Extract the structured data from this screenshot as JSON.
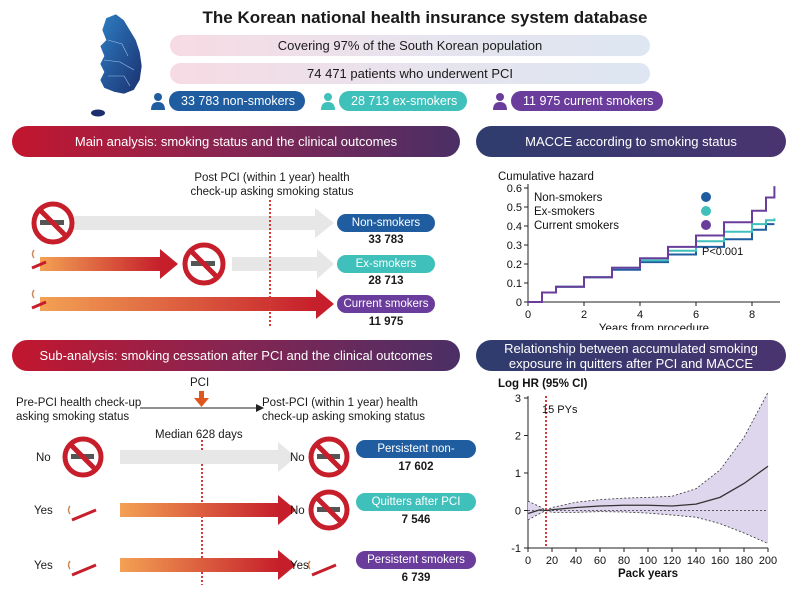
{
  "header": {
    "title": "The Korean national health insurance system database",
    "coverage": "Covering 97% of the South Korean population",
    "patients": "74 471 patients who underwent PCI",
    "groups": [
      {
        "label": "33 783 non-smokers",
        "color": "#1f5da0"
      },
      {
        "label": "28 713 ex-smokers",
        "color": "#3fc0bb"
      },
      {
        "label": "11 975 current smokers",
        "color": "#6a3c9c"
      }
    ]
  },
  "main_analysis": {
    "banner": "Main analysis: smoking status and the clinical outcomes",
    "checkup_line1": "Post PCI (within 1 year) health",
    "checkup_line2": "check-up asking smoking status",
    "rows": [
      {
        "label": "Non-smokers",
        "count": "33 783"
      },
      {
        "label": "Ex-smokers",
        "count": "28 713"
      },
      {
        "label": "Current smokers",
        "count": "11 975"
      }
    ]
  },
  "sub_analysis": {
    "banner": "Sub-analysis: smoking cessation after PCI and the clinical outcomes",
    "pci": "PCI",
    "pre_line1": "Pre-PCI health check-up",
    "pre_line2": "asking smoking status",
    "post_line1": "Post-PCI (within 1 year) health",
    "post_line2": "check-up asking smoking status",
    "median": "Median 628 days",
    "rows": [
      {
        "pre": "No",
        "post": "No",
        "label": "Persistent non-smokers",
        "count": "17 602"
      },
      {
        "pre": "Yes",
        "post": "No",
        "label": "Quitters after PCI",
        "count": "7 546"
      },
      {
        "pre": "Yes",
        "post": "Yes",
        "label": "Persistent smokers",
        "count": "6 739"
      }
    ]
  },
  "chart_data": [
    {
      "type": "line",
      "title": "MACCE according to smoking status",
      "ylabel": "Cumulative hazard",
      "xlabel": "Years from procedure",
      "xlim": [
        0,
        9
      ],
      "ylim": [
        0,
        0.6
      ],
      "xticks": [
        0,
        2,
        4,
        6,
        8
      ],
      "yticks": [
        0,
        0.1,
        0.2,
        0.3,
        0.4,
        0.5,
        0.6
      ],
      "ytick_labels": [
        "0",
        "0.1",
        "0.2",
        "0.3",
        "0.4",
        "0.5",
        "0.6"
      ],
      "annotation": "P<0.001",
      "legend": "top-left",
      "series": [
        {
          "name": "Non-smokers",
          "color": "#1f5da0",
          "x": [
            0,
            0.5,
            1,
            2,
            3,
            4,
            5,
            6,
            7,
            8,
            8.5,
            8.8
          ],
          "y": [
            0,
            0.05,
            0.08,
            0.13,
            0.17,
            0.21,
            0.25,
            0.29,
            0.33,
            0.38,
            0.41,
            0.41
          ]
        },
        {
          "name": "Ex-smokers",
          "color": "#3fc0bb",
          "x": [
            0,
            0.5,
            1,
            2,
            3,
            4,
            5,
            6,
            7,
            8,
            8.5,
            8.8
          ],
          "y": [
            0,
            0.05,
            0.08,
            0.13,
            0.18,
            0.22,
            0.27,
            0.32,
            0.37,
            0.41,
            0.43,
            0.44
          ]
        },
        {
          "name": "Current smokers",
          "color": "#6a3c9c",
          "x": [
            0,
            0.5,
            1,
            2,
            3,
            4,
            5,
            6,
            7,
            8,
            8.5,
            8.8
          ],
          "y": [
            0,
            0.05,
            0.08,
            0.13,
            0.18,
            0.23,
            0.29,
            0.35,
            0.42,
            0.48,
            0.55,
            0.61
          ]
        }
      ]
    },
    {
      "type": "line",
      "title": "Relationship between accumulated smoking exposure in quitters after PCI and MACCE",
      "title_line1": "Relationship between accumulated smoking",
      "title_line2": "exposure in quitters after PCI and MACCE",
      "ylabel": "Log HR (95% CI)",
      "xlabel": "Pack years",
      "xlim": [
        0,
        200
      ],
      "ylim": [
        -1,
        3
      ],
      "xticks": [
        0,
        20,
        40,
        60,
        80,
        100,
        120,
        140,
        160,
        180,
        200
      ],
      "yticks": [
        -1,
        0,
        1,
        2,
        3
      ],
      "annotation": "15 PYs",
      "reference_x": 15,
      "series": [
        {
          "name": "Log HR",
          "x": [
            0,
            10,
            15,
            20,
            40,
            60,
            80,
            100,
            120,
            140,
            160,
            180,
            200
          ],
          "y": [
            -0.08,
            0.02,
            0.0,
            0.02,
            0.08,
            0.12,
            0.14,
            0.14,
            0.12,
            0.17,
            0.35,
            0.72,
            1.18
          ],
          "lower": [
            -0.25,
            -0.08,
            0.0,
            -0.05,
            -0.05,
            -0.03,
            -0.04,
            -0.07,
            -0.12,
            -0.18,
            -0.35,
            -0.6,
            -0.88
          ],
          "upper": [
            0.25,
            0.1,
            0.0,
            0.08,
            0.22,
            0.29,
            0.33,
            0.35,
            0.38,
            0.58,
            1.08,
            1.95,
            3.15
          ]
        }
      ]
    }
  ]
}
